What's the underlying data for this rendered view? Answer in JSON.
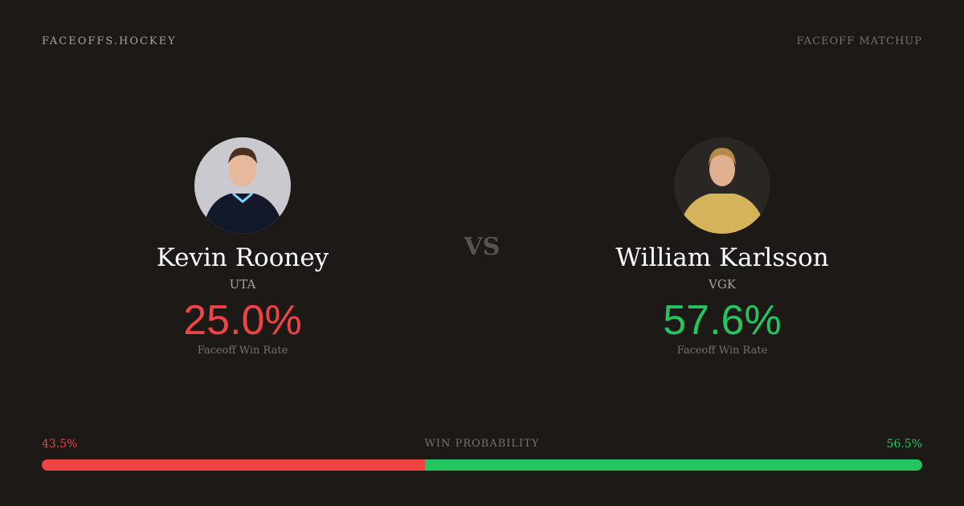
{
  "header": {
    "brand": "FACEOFFS.HOCKEY",
    "tag": "FACEOFF MATCHUP"
  },
  "vs": "VS",
  "players": [
    {
      "name": "Kevin Rooney",
      "team": "UTA",
      "win_rate": "25.0%",
      "win_rate_label": "Faceoff Win Rate",
      "color": "#ef4444"
    },
    {
      "name": "William Karlsson",
      "team": "VGK",
      "win_rate": "57.6%",
      "win_rate_label": "Faceoff Win Rate",
      "color": "#22c55e"
    }
  ],
  "win_probability": {
    "label": "WIN PROBABILITY",
    "left": "43.5%",
    "right": "56.5%",
    "left_value": 43.5,
    "right_value": 56.5,
    "left_color": "#ef4444",
    "right_color": "#22c55e"
  }
}
